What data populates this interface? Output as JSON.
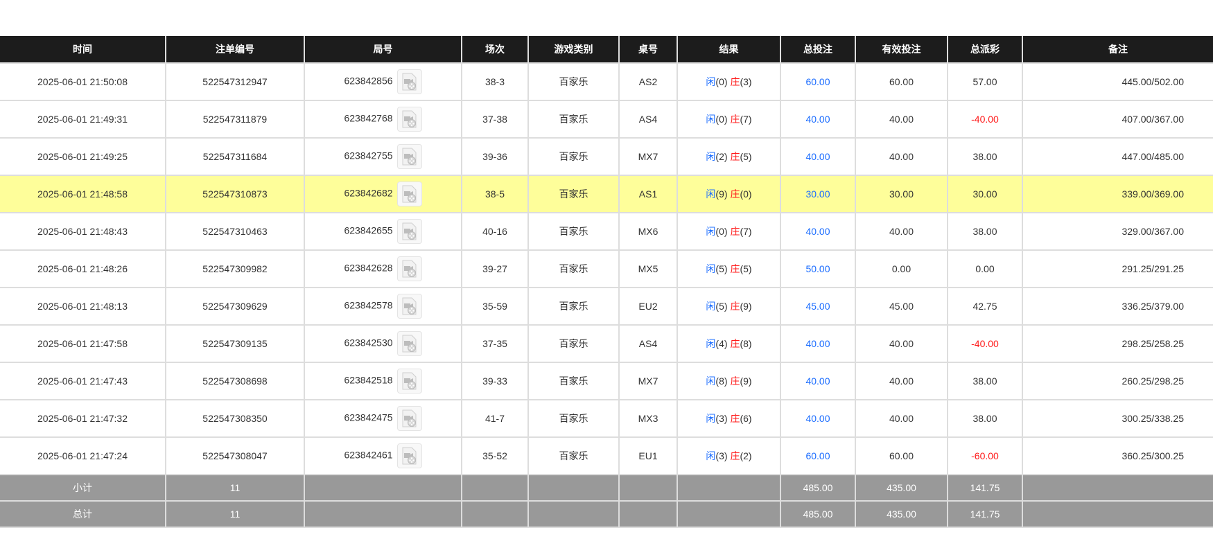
{
  "headers": [
    "时间",
    "注单编号",
    "局号",
    "场次",
    "游戏类别",
    "桌号",
    "结果",
    "总投注",
    "有效投注",
    "总派彩",
    "备注"
  ],
  "colors": {
    "header_bg": "#1c1c1c",
    "highlight": "#fefe9a",
    "player": "#1a6cff",
    "banker": "#ff1a1a",
    "negative": "#ff1a1a",
    "summary_bg": "#999999"
  },
  "result_labels": {
    "player": "闲",
    "banker": "庄"
  },
  "rows": [
    {
      "time": "2025-06-01 21:50:08",
      "bet_id": "522547312947",
      "round": "623842856",
      "shoe": "38-3",
      "game": "百家乐",
      "table": "AS2",
      "player": "(0)",
      "banker": "(3)",
      "total_bet": "60.00",
      "valid_bet": "60.00",
      "payout": "57.00",
      "payout_negative": false,
      "remark": "445.00/502.00",
      "highlighted": false
    },
    {
      "time": "2025-06-01 21:49:31",
      "bet_id": "522547311879",
      "round": "623842768",
      "shoe": "37-38",
      "game": "百家乐",
      "table": "AS4",
      "player": "(0)",
      "banker": "(7)",
      "total_bet": "40.00",
      "valid_bet": "40.00",
      "payout": "-40.00",
      "payout_negative": true,
      "remark": "407.00/367.00",
      "highlighted": false
    },
    {
      "time": "2025-06-01 21:49:25",
      "bet_id": "522547311684",
      "round": "623842755",
      "shoe": "39-36",
      "game": "百家乐",
      "table": "MX7",
      "player": "(2)",
      "banker": "(5)",
      "total_bet": "40.00",
      "valid_bet": "40.00",
      "payout": "38.00",
      "payout_negative": false,
      "remark": "447.00/485.00",
      "highlighted": false
    },
    {
      "time": "2025-06-01 21:48:58",
      "bet_id": "522547310873",
      "round": "623842682",
      "shoe": "38-5",
      "game": "百家乐",
      "table": "AS1",
      "player": "(9)",
      "banker": "(0)",
      "total_bet": "30.00",
      "valid_bet": "30.00",
      "payout": "30.00",
      "payout_negative": false,
      "remark": "339.00/369.00",
      "highlighted": true
    },
    {
      "time": "2025-06-01 21:48:43",
      "bet_id": "522547310463",
      "round": "623842655",
      "shoe": "40-16",
      "game": "百家乐",
      "table": "MX6",
      "player": "(0)",
      "banker": "(7)",
      "total_bet": "40.00",
      "valid_bet": "40.00",
      "payout": "38.00",
      "payout_negative": false,
      "remark": "329.00/367.00",
      "highlighted": false
    },
    {
      "time": "2025-06-01 21:48:26",
      "bet_id": "522547309982",
      "round": "623842628",
      "shoe": "39-27",
      "game": "百家乐",
      "table": "MX5",
      "player": "(5)",
      "banker": "(5)",
      "total_bet": "50.00",
      "valid_bet": "0.00",
      "payout": "0.00",
      "payout_negative": false,
      "remark": "291.25/291.25",
      "highlighted": false
    },
    {
      "time": "2025-06-01 21:48:13",
      "bet_id": "522547309629",
      "round": "623842578",
      "shoe": "35-59",
      "game": "百家乐",
      "table": "EU2",
      "player": "(5)",
      "banker": "(9)",
      "total_bet": "45.00",
      "valid_bet": "45.00",
      "payout": "42.75",
      "payout_negative": false,
      "remark": "336.25/379.00",
      "highlighted": false
    },
    {
      "time": "2025-06-01 21:47:58",
      "bet_id": "522547309135",
      "round": "623842530",
      "shoe": "37-35",
      "game": "百家乐",
      "table": "AS4",
      "player": "(4)",
      "banker": "(8)",
      "total_bet": "40.00",
      "valid_bet": "40.00",
      "payout": "-40.00",
      "payout_negative": true,
      "remark": "298.25/258.25",
      "highlighted": false
    },
    {
      "time": "2025-06-01 21:47:43",
      "bet_id": "522547308698",
      "round": "623842518",
      "shoe": "39-33",
      "game": "百家乐",
      "table": "MX7",
      "player": "(8)",
      "banker": "(9)",
      "total_bet": "40.00",
      "valid_bet": "40.00",
      "payout": "38.00",
      "payout_negative": false,
      "remark": "260.25/298.25",
      "highlighted": false
    },
    {
      "time": "2025-06-01 21:47:32",
      "bet_id": "522547308350",
      "round": "623842475",
      "shoe": "41-7",
      "game": "百家乐",
      "table": "MX3",
      "player": "(3)",
      "banker": "(6)",
      "total_bet": "40.00",
      "valid_bet": "40.00",
      "payout": "38.00",
      "payout_negative": false,
      "remark": "300.25/338.25",
      "highlighted": false
    },
    {
      "time": "2025-06-01 21:47:24",
      "bet_id": "522547308047",
      "round": "623842461",
      "shoe": "35-52",
      "game": "百家乐",
      "table": "EU1",
      "player": "(3)",
      "banker": "(2)",
      "total_bet": "60.00",
      "valid_bet": "60.00",
      "payout": "-60.00",
      "payout_negative": true,
      "remark": "360.25/300.25",
      "highlighted": false
    }
  ],
  "summary": [
    {
      "label": "小计",
      "count": "11",
      "total_bet": "485.00",
      "valid_bet": "435.00",
      "payout": "141.75"
    },
    {
      "label": "总计",
      "count": "11",
      "total_bet": "485.00",
      "valid_bet": "435.00",
      "payout": "141.75"
    }
  ],
  "icons": {
    "replay": "video-file-icon"
  }
}
